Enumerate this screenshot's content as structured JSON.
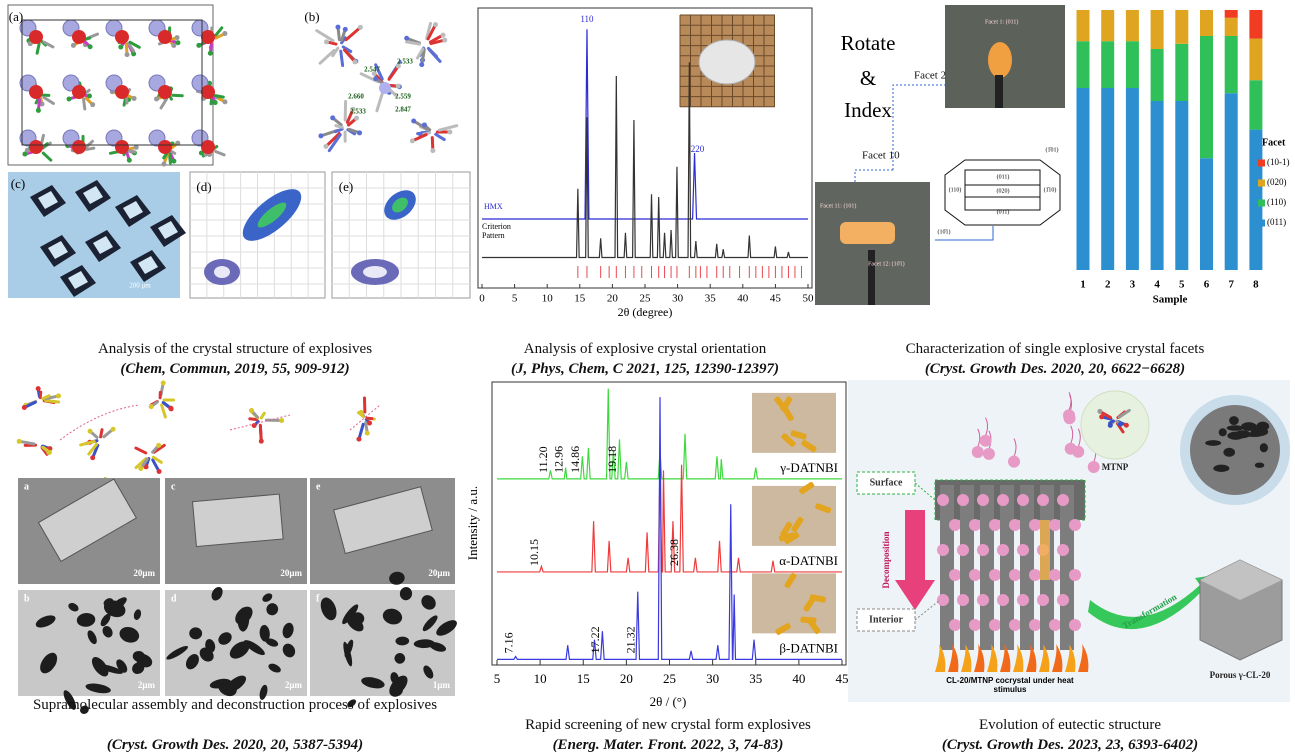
{
  "chart_data": [
    {
      "type": "line",
      "xlabel": "2θ (degree)",
      "xlim": [
        0,
        50
      ],
      "xticks": [
        0,
        5,
        10,
        15,
        20,
        25,
        30,
        35,
        40,
        45,
        50
      ],
      "ylim": [
        0,
        100
      ],
      "series": [
        {
          "name": "HMX",
          "color": "#2b2bd6",
          "x": [
            0,
            15.8,
            16.1,
            16.4,
            32.3,
            32.6,
            32.9,
            50
          ],
          "values": [
            24,
            24,
            93,
            24,
            24,
            48,
            24,
            24
          ]
        },
        {
          "name": "Criterion Pattern",
          "color": "#333333",
          "x": [
            0,
            14.5,
            14.7,
            14.9,
            15.9,
            16.1,
            16.3,
            18.0,
            18.2,
            18.4,
            20.4,
            20.6,
            20.8,
            21.8,
            22.0,
            22.2,
            23.1,
            23.3,
            23.5,
            25.8,
            26.0,
            26.2,
            26.9,
            27.1,
            27.3,
            27.8,
            28.0,
            28.2,
            28.8,
            29.0,
            29.2,
            29.7,
            29.9,
            30.1,
            31.6,
            31.8,
            32.0,
            32.6,
            32.8,
            33.0,
            35.8,
            36.0,
            36.2,
            36.8,
            37.0,
            37.2,
            40.8,
            41.0,
            41.2,
            44.8,
            45.0,
            45.2,
            46.8,
            47.0,
            47.2,
            50
          ],
          "values": [
            10,
            10,
            35,
            10,
            10,
            61,
            10,
            10,
            17,
            10,
            10,
            76,
            10,
            10,
            19,
            10,
            10,
            60,
            10,
            10,
            33,
            10,
            10,
            32,
            10,
            10,
            19,
            10,
            10,
            20,
            10,
            10,
            43,
            10,
            10,
            81,
            10,
            10,
            16,
            10,
            10,
            15,
            10,
            10,
            13,
            10,
            10,
            18,
            10,
            10,
            14,
            10,
            10,
            12,
            10,
            10
          ]
        }
      ],
      "reference": {
        "color": "#e8484f",
        "x": [
          14.7,
          16.1,
          18.2,
          19.5,
          20.6,
          22,
          23.3,
          24.5,
          26,
          27.1,
          28,
          29,
          29.9,
          31.8,
          32.8,
          33.5,
          34.5,
          36,
          37,
          38,
          39.5,
          41,
          42,
          43,
          44,
          45,
          46,
          47,
          48,
          49
        ]
      },
      "annotations": [
        "110",
        "220"
      ]
    },
    {
      "type": "stacked-bar",
      "xlabel": "Sample",
      "legend_title": "Facet",
      "ylim": [
        0,
        100
      ],
      "categories": [
        "1",
        "2",
        "3",
        "4",
        "5",
        "6",
        "7",
        "8"
      ],
      "series": [
        {
          "name": "(011)",
          "color": "#2b8fd0",
          "values": [
            70,
            70,
            70,
            65,
            65,
            43,
            68,
            54
          ]
        },
        {
          "name": "(110)",
          "color": "#2fc05a",
          "values": [
            18,
            18,
            18,
            20,
            22,
            47,
            22,
            19
          ]
        },
        {
          "name": "(020)",
          "color": "#e0a520",
          "values": [
            12,
            12,
            12,
            15,
            13,
            10,
            7,
            16
          ]
        },
        {
          "name": "(10-1)",
          "color": "#f23c22",
          "values": [
            0,
            0,
            0,
            0,
            0,
            0,
            3,
            11
          ]
        }
      ]
    },
    {
      "type": "line",
      "xlabel": "2θ / (°)",
      "ylabel": "Intensity / a.u.",
      "xlim": [
        5,
        45
      ],
      "xticks": [
        5,
        10,
        15,
        20,
        25,
        30,
        35,
        40,
        45
      ],
      "ylim": [
        0,
        100
      ],
      "series": [
        {
          "name": "γ-DATNBI",
          "color": "#3fd93f",
          "x": [
            5,
            11.0,
            11.2,
            11.4,
            12.8,
            12.96,
            13.1,
            14.7,
            14.9,
            15.1,
            15.4,
            15.6,
            15.8,
            17.7,
            17.9,
            18.1,
            18.3,
            18.5,
            18.7,
            19.0,
            19.2,
            19.4,
            19.8,
            20.0,
            20.2,
            23.7,
            23.9,
            24.1,
            26.6,
            26.8,
            27.0,
            30.3,
            30.5,
            30.7,
            30.9,
            31.0,
            31.2,
            34.8,
            35.0,
            35.2,
            45
          ],
          "values": [
            66,
            66,
            69,
            66,
            66,
            70,
            66,
            66,
            74,
            66,
            66,
            77,
            66,
            66,
            98,
            66,
            66,
            76,
            66,
            66,
            80,
            66,
            66,
            72,
            66,
            66,
            76,
            66,
            66,
            82,
            66,
            66,
            74,
            66,
            66,
            73,
            66,
            66,
            70,
            66,
            66
          ],
          "peak_labels": [
            {
              "value": 11.2,
              "label": "11.20"
            },
            {
              "value": 12.96,
              "label": "12.96"
            },
            {
              "value": 14.86,
              "label": "14.86"
            },
            {
              "value": 19.18,
              "label": "19.18"
            }
          ]
        },
        {
          "name": "α-DATNBI",
          "color": "#ef3b3b",
          "x": [
            5,
            9.95,
            10.15,
            10.35,
            16.0,
            16.2,
            16.4,
            17.8,
            18.0,
            18.2,
            20.0,
            20.2,
            20.4,
            22.2,
            22.4,
            22.6,
            23.7,
            23.9,
            24.1,
            24.2,
            24.3,
            24.5,
            25.2,
            25.4,
            25.6,
            26.2,
            26.4,
            26.6,
            27.8,
            28.0,
            28.2,
            30.6,
            30.8,
            31.0,
            32.8,
            33.0,
            33.2,
            36.8,
            37.0,
            37.2,
            45
          ],
          "values": [
            33,
            33,
            35,
            33,
            33,
            51,
            33,
            33,
            44,
            33,
            33,
            38,
            33,
            33,
            47,
            33,
            33,
            73,
            33,
            33,
            69,
            33,
            33,
            51,
            33,
            33,
            71,
            33,
            33,
            38,
            33,
            33,
            44,
            33,
            33,
            38,
            33,
            33,
            37,
            33,
            33
          ],
          "peak_labels": [
            {
              "value": 10.15,
              "label": "10.15"
            },
            {
              "value": 26.38,
              "label": "26.38"
            }
          ]
        },
        {
          "name": "β-DATNBI",
          "color": "#3a3ae0",
          "x": [
            5,
            6.96,
            7.16,
            7.36,
            13.0,
            13.2,
            13.4,
            16.1,
            16.3,
            16.5,
            17.02,
            17.22,
            17.42,
            21.12,
            21.32,
            21.52,
            23.7,
            23.9,
            24.1,
            27.3,
            27.5,
            27.7,
            30.4,
            30.6,
            30.8,
            31.9,
            32.1,
            32.3,
            32.35,
            32.5,
            32.65,
            34.6,
            34.8,
            35.0,
            45
          ],
          "values": [
            2,
            2,
            3,
            2,
            2,
            7,
            2,
            2,
            9,
            2,
            2,
            12,
            2,
            2,
            26,
            2,
            2,
            95,
            2,
            2,
            5,
            2,
            2,
            7,
            2,
            2,
            57,
            2,
            2,
            25,
            2,
            2,
            9,
            2,
            2
          ],
          "peak_labels": [
            {
              "value": 7.16,
              "label": "7.16"
            },
            {
              "value": 17.22,
              "label": "17.22"
            },
            {
              "value": 21.32,
              "label": "21.32"
            }
          ]
        }
      ]
    }
  ],
  "panels": [
    {
      "caption": "Analysis of the crystal structure of explosives",
      "citation": "(Chem, Commun, 2019, 55, 909-912)",
      "labels": [
        "(a)",
        "(b)",
        "(c)",
        "(d)",
        "(e)"
      ],
      "distances": [
        "2.547",
        "2.533",
        "2.559",
        "2.660",
        "2.533",
        "2.847"
      ],
      "scale": "200 μm"
    },
    {
      "caption": "Analysis of explosive crystal orientation",
      "citation": "(J, Phys, Chem, C 2021, 125, 12390-12397)"
    },
    {
      "caption": "Characterization of single explosive crystal facets",
      "citation": "(Cryst. Growth Des. 2020, 20, 6622−6628)",
      "heading": [
        "Rotate",
        "&",
        "Index"
      ],
      "facets": [
        "Facet 2",
        "Facet 10",
        "Facet 1: (011)",
        "Facet 11: (101)",
        "Facet 12: (10̄1)"
      ],
      "faces": [
        "(011)",
        "(020)",
        "(110)",
        "(1̄10)",
        "(01̄1)",
        "(10̄1)",
        "(1̄01)"
      ]
    },
    {
      "caption": "Supramolecular assembly and deconstruction process of explosives",
      "citation": "(Cryst. Growth Des. 2020, 20, 5387-5394)",
      "labels": [
        "a",
        "c",
        "e",
        "b",
        "d",
        "f"
      ],
      "scales": [
        "20μm",
        "20μm",
        "20μm",
        "2μm",
        "2μm",
        "1μm"
      ]
    },
    {
      "caption": "Rapid screening of new crystal form explosives",
      "citation": "(Energ. Mater. Front. 2022, 3, 74-83)"
    },
    {
      "caption": "Evolution of eutectic structure",
      "citation": "(Cryst. Growth Des. 2023, 23, 6393-6402)",
      "labels": [
        "Surface",
        "Interior",
        "Decomposition",
        "MTNP",
        "Transformation",
        "CL-20/MTNP cocrystal under heat stimulus",
        "Porous γ-CL-20"
      ]
    }
  ]
}
